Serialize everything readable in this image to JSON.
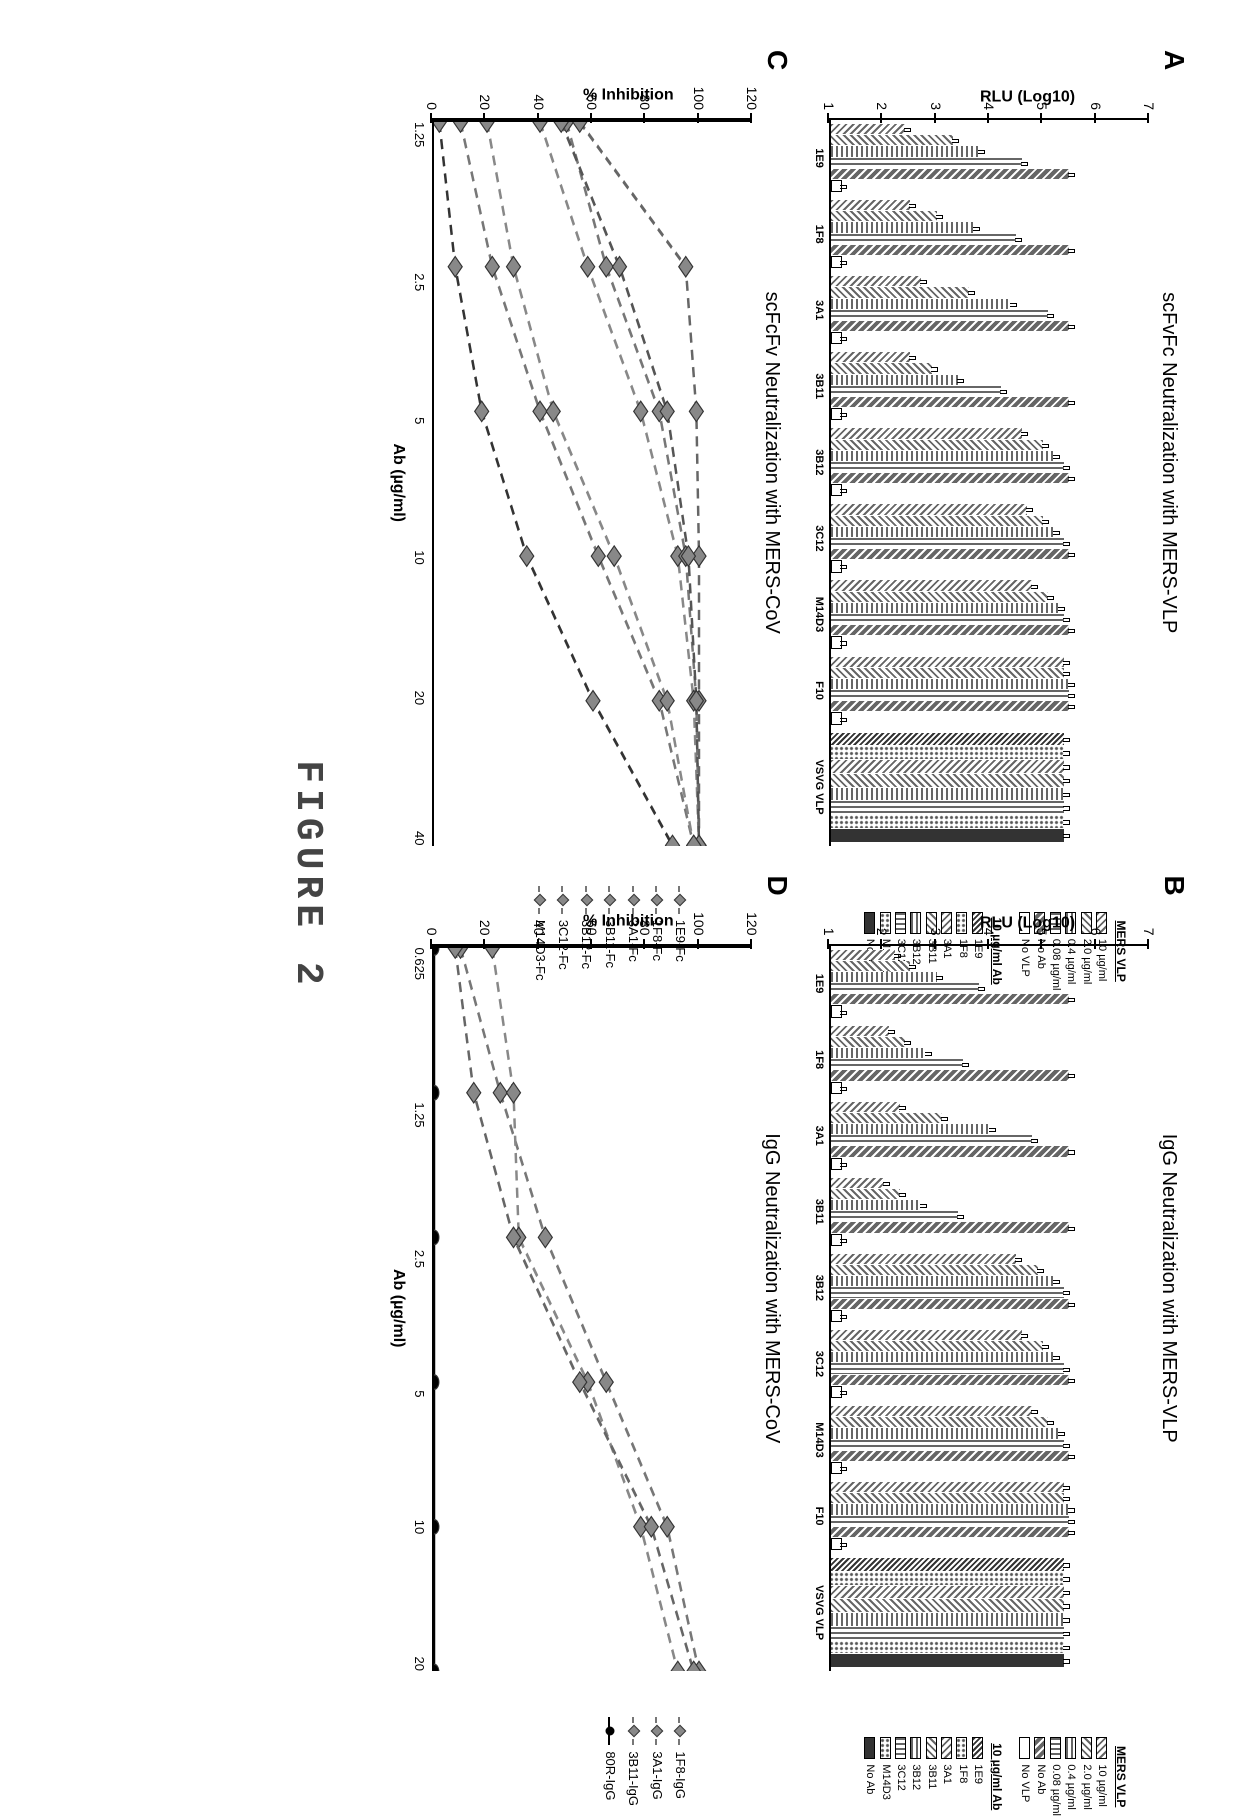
{
  "figure_caption": "FIGURE 2",
  "panel_A": {
    "label": "A",
    "title": "scFvFc Neutralization with MERS-VLP",
    "y_axis_label": "RLU (Log10)",
    "y_ticks": [
      1,
      2,
      3,
      4,
      5,
      6,
      7
    ],
    "ylim": [
      1,
      7
    ],
    "x_groups": [
      "1E9",
      "1F8",
      "3A1",
      "3B11",
      "3B12",
      "3C12",
      "M14D3",
      "F10",
      "VSVG VLP"
    ],
    "legend_header_1": "MERS VLP",
    "legend_1": [
      "10 µg/ml",
      "2.0 µg/ml",
      "0.4 µg/ml",
      "0.08 µg/ml",
      "No Ab",
      "No VLP"
    ],
    "legend_header_2": "10 µg/ml Ab",
    "legend_2": [
      "1E9",
      "1F8",
      "3A1",
      "3B11",
      "3B12",
      "3C12",
      "M14D3",
      "No Ab"
    ],
    "bar_color": "#808080",
    "background_color": "#ffffff",
    "group_data": {
      "1E9": [
        2.4,
        3.3,
        3.8,
        4.6,
        5.5,
        1.2
      ],
      "1F8": [
        2.5,
        3.0,
        3.7,
        4.5,
        5.5,
        1.2
      ],
      "3A1": [
        2.7,
        3.6,
        4.4,
        5.1,
        5.5,
        1.2
      ],
      "3B11": [
        2.5,
        2.9,
        3.4,
        4.2,
        5.5,
        1.2
      ],
      "3B12": [
        4.6,
        5.0,
        5.2,
        5.4,
        5.5,
        1.2
      ],
      "3C12": [
        4.7,
        5.0,
        5.2,
        5.4,
        5.5,
        1.2
      ],
      "M14D3": [
        4.8,
        5.1,
        5.3,
        5.4,
        5.5,
        1.2
      ],
      "F10": [
        5.4,
        5.4,
        5.5,
        5.5,
        5.5,
        1.2
      ],
      "VSVG": [
        5.4,
        5.4,
        5.4,
        5.4,
        5.4,
        5.4,
        5.4,
        5.4
      ]
    }
  },
  "panel_B": {
    "label": "B",
    "title": "IgG Neutralization with MERS-VLP",
    "y_axis_label": "RLU (Log10)",
    "y_ticks": [
      1,
      2,
      3,
      4,
      5,
      6,
      7
    ],
    "ylim": [
      1,
      7
    ],
    "x_groups": [
      "1E9",
      "1F8",
      "3A1",
      "3B11",
      "3B12",
      "3C12",
      "M14D3",
      "F10",
      "VSVG VLP"
    ],
    "legend_header_1": "MERS VLP",
    "legend_1": [
      "10 µg/ml",
      "2.0 µg/ml",
      "0.4 µg/ml",
      "0.08 µg/ml",
      "No Ab",
      "No VLP"
    ],
    "legend_header_2": "10 µg/ml Ab",
    "legend_2": [
      "1E9",
      "1F8",
      "3A1",
      "3B11",
      "3B12",
      "3C12",
      "M14D3",
      "No Ab"
    ],
    "bar_color": "#808080",
    "background_color": "#ffffff",
    "group_data": {
      "1E9": [
        2.2,
        2.5,
        3.0,
        3.8,
        5.5,
        1.2
      ],
      "1F8": [
        2.1,
        2.4,
        2.8,
        3.5,
        5.5,
        1.2
      ],
      "3A1": [
        2.3,
        3.1,
        4.0,
        4.8,
        5.5,
        1.2
      ],
      "3B11": [
        2.0,
        2.3,
        2.7,
        3.4,
        5.5,
        1.2
      ],
      "3B12": [
        4.5,
        4.9,
        5.2,
        5.4,
        5.5,
        1.2
      ],
      "3C12": [
        4.6,
        5.0,
        5.2,
        5.4,
        5.5,
        1.2
      ],
      "M14D3": [
        4.8,
        5.1,
        5.3,
        5.4,
        5.5,
        1.2
      ],
      "F10": [
        5.4,
        5.4,
        5.5,
        5.5,
        5.5,
        1.2
      ],
      "VSVG": [
        5.4,
        5.4,
        5.4,
        5.4,
        5.4,
        5.4,
        5.4,
        5.4
      ]
    }
  },
  "panel_C": {
    "label": "C",
    "title": "scFcFv Neutralization with MERS-CoV",
    "y_axis_label": "% Inhibition",
    "x_axis_label": "Ab (µg/ml)",
    "y_ticks": [
      0,
      20,
      40,
      60,
      80,
      100,
      120
    ],
    "ylim": [
      0,
      120
    ],
    "x_ticks": [
      "1.25",
      "2.5",
      "5",
      "10",
      "20",
      "40"
    ],
    "x_scale": "log",
    "legend": [
      "1E9-Fc",
      "1F8-Fc",
      "3A1-Fc",
      "3B11-Fc",
      "3B12-Fc",
      "3C12-Fc",
      "M14D3-Fc"
    ],
    "series_colors": [
      "#888888",
      "#777777",
      "#666666",
      "#555555",
      "#777777",
      "#333333",
      "#888888"
    ],
    "line_style": "dashed",
    "series": {
      "1E9-Fc": [
        40,
        58,
        78,
        92,
        98,
        100
      ],
      "1F8-Fc": [
        50,
        65,
        85,
        95,
        99,
        100
      ],
      "3A1-Fc": [
        55,
        95,
        99,
        100,
        100,
        100
      ],
      "3B11-Fc": [
        48,
        70,
        88,
        96,
        99,
        100
      ],
      "3B12-Fc": [
        10,
        22,
        40,
        62,
        85,
        98
      ],
      "3C12-Fc": [
        2,
        8,
        18,
        35,
        60,
        90
      ],
      "M14D3-Fc": [
        20,
        30,
        45,
        68,
        88,
        98
      ]
    }
  },
  "panel_D": {
    "label": "D",
    "title": "IgG Neutralization with MERS-CoV",
    "y_axis_label": "% Inhibition",
    "x_axis_label": "Ab (µg/ml)",
    "y_ticks": [
      0,
      20,
      40,
      60,
      80,
      100,
      120
    ],
    "ylim": [
      0,
      120
    ],
    "x_ticks": [
      "0.625",
      "1.25",
      "2.5",
      "5",
      "10",
      "20"
    ],
    "x_scale": "log",
    "legend": [
      "1F8-IgG",
      "3A1-IgG",
      "3B11-IgG",
      "80R-IgG"
    ],
    "series_colors": [
      "#777777",
      "#888888",
      "#666666",
      "#000000"
    ],
    "series": {
      "1F8-IgG": [
        10,
        25,
        42,
        65,
        88,
        100
      ],
      "3A1-IgG": [
        22,
        30,
        32,
        58,
        78,
        92
      ],
      "3B11-IgG": [
        8,
        15,
        30,
        55,
        82,
        98
      ],
      "80R-IgG": [
        0,
        0,
        0,
        0,
        0,
        0
      ]
    },
    "control_line_style": "solid"
  },
  "colors": {
    "axis": "#000000",
    "background": "#ffffff"
  },
  "fonts": {
    "title_pt": 20,
    "label_pt": 16,
    "tick_pt": 13,
    "legend_pt": 11
  }
}
